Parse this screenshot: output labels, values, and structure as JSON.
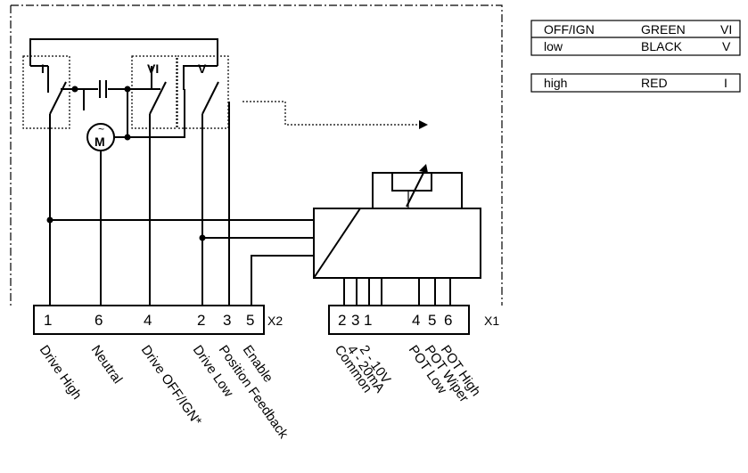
{
  "switches": {
    "sw_i": "I",
    "sw_vi": "VI",
    "sw_v": "V",
    "motor": "M",
    "motor_symbol": "~"
  },
  "terminal_block_x2": {
    "name": "X2",
    "terminals": [
      "1",
      "6",
      "4",
      "2",
      "3",
      "5"
    ],
    "labels": [
      "Drive High",
      "Neutral",
      "Drive OFF/IGN*",
      "Drive Low",
      "Position Feedback",
      "Enable"
    ]
  },
  "terminal_block_x1": {
    "name": "X1",
    "terminals": [
      "2",
      "3",
      "1",
      "4",
      "5",
      "6"
    ],
    "labels": [
      "Common",
      "4 - 20mA",
      "2 - 10V",
      "POT Low",
      "POT Wiper",
      "POT High"
    ]
  },
  "wire_table": {
    "rows": [
      [
        "OFF/IGN",
        "GREEN",
        "VI"
      ],
      [
        "low",
        "BLACK",
        "V"
      ],
      [
        "high",
        "RED",
        "I"
      ]
    ]
  }
}
